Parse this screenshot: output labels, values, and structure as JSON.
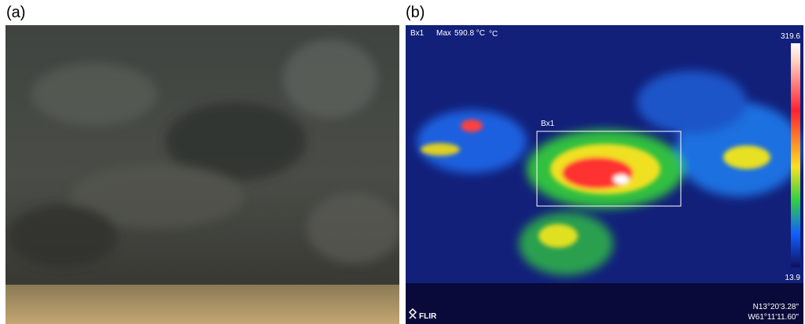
{
  "panel_a": {
    "label": "(a)"
  },
  "panel_b": {
    "label": "(b)",
    "header": {
      "box": "Bx1",
      "max_label": "Max",
      "max_value": "590.8 °C",
      "unit": "°C"
    },
    "scale": {
      "max": 319.6,
      "min": 13.9
    },
    "box_label": "Bx1",
    "logo": "FLIR",
    "coords": {
      "lat": "N13°20'3.28\"",
      "lon": "W61°11'11.60\""
    }
  }
}
